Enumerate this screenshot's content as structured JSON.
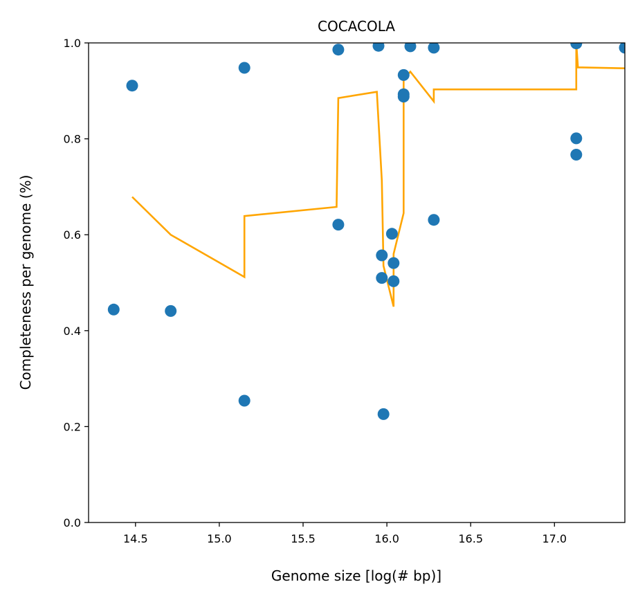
{
  "chart_data": {
    "type": "scatter",
    "title": "COCACOLA",
    "xlabel": "Genome size [log(# bp)]",
    "ylabel": "Completeness per genome (%)",
    "xlim": [
      14.22,
      17.42
    ],
    "ylim": [
      0.0,
      1.0
    ],
    "x_ticks": [
      14.5,
      15.0,
      15.5,
      16.0,
      16.5,
      17.0
    ],
    "x_tick_labels": [
      "14.5",
      "15.0",
      "15.5",
      "16.0",
      "16.5",
      "17.0"
    ],
    "y_ticks": [
      0.0,
      0.2,
      0.4,
      0.6,
      0.8,
      1.0
    ],
    "y_tick_labels": [
      "0.0",
      "0.2",
      "0.4",
      "0.6",
      "0.8",
      "1.0"
    ],
    "grid": false,
    "series": [
      {
        "kind": "scatter",
        "color": "#1f77b4",
        "points": [
          [
            14.37,
            0.444
          ],
          [
            14.48,
            0.911
          ],
          [
            14.71,
            0.441
          ],
          [
            15.15,
            0.948
          ],
          [
            15.15,
            0.254
          ],
          [
            15.71,
            0.986
          ],
          [
            15.71,
            0.621
          ],
          [
            15.95,
            0.994
          ],
          [
            15.97,
            0.557
          ],
          [
            15.97,
            0.51
          ],
          [
            15.98,
            0.226
          ],
          [
            16.03,
            0.602
          ],
          [
            16.04,
            0.541
          ],
          [
            16.04,
            0.503
          ],
          [
            16.1,
            0.933
          ],
          [
            16.1,
            0.893
          ],
          [
            16.1,
            0.888
          ],
          [
            16.14,
            0.993
          ],
          [
            16.28,
            0.99
          ],
          [
            16.28,
            0.631
          ],
          [
            17.13,
            0.999
          ],
          [
            17.13,
            0.801
          ],
          [
            17.13,
            0.767
          ],
          [
            17.42,
            0.99
          ]
        ]
      },
      {
        "kind": "line",
        "color": "#ffa500",
        "points": [
          [
            14.48,
            0.679
          ],
          [
            14.71,
            0.6
          ],
          [
            15.15,
            0.512
          ],
          [
            15.15,
            0.639
          ],
          [
            15.7,
            0.658
          ],
          [
            15.71,
            0.885
          ],
          [
            15.94,
            0.898
          ],
          [
            15.97,
            0.713
          ],
          [
            15.98,
            0.535
          ],
          [
            16.04,
            0.45
          ],
          [
            16.04,
            0.56
          ],
          [
            16.1,
            0.645
          ],
          [
            16.1,
            0.925
          ],
          [
            16.14,
            0.94
          ],
          [
            16.28,
            0.878
          ],
          [
            16.28,
            0.903
          ],
          [
            17.13,
            0.903
          ],
          [
            17.13,
            1.0
          ],
          [
            17.14,
            0.949
          ],
          [
            17.42,
            0.947
          ]
        ]
      }
    ]
  }
}
